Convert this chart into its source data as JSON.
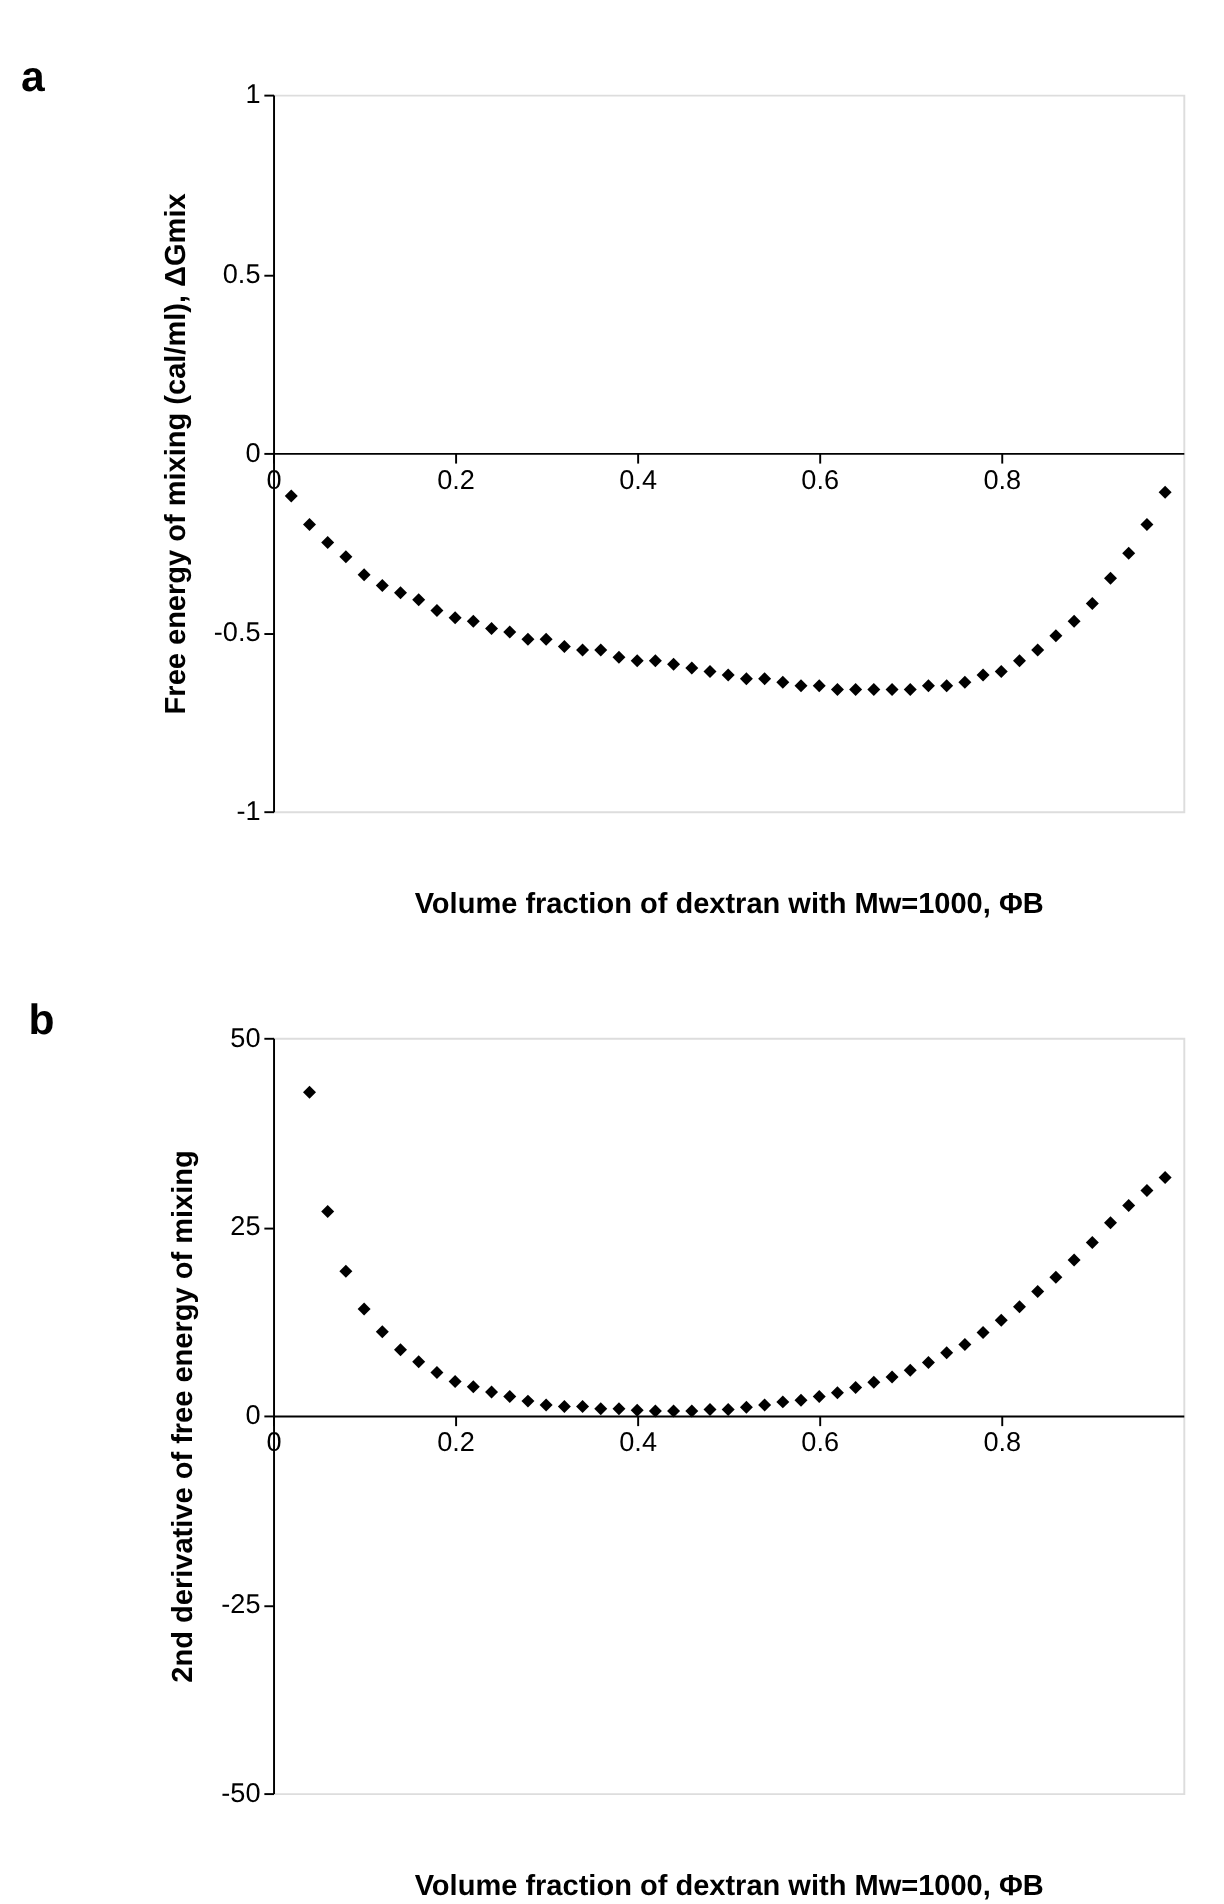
{
  "chart_data": [
    {
      "type": "scatter",
      "title": "a",
      "xlabel": "Volume fraction of dextran with Mw=1000, ΦB",
      "ylabel": "Free energy of mixing (cal/ml), ΔGmix",
      "marker": "diamond",
      "grid": false,
      "xlim": [
        0,
        1
      ],
      "xticks": [
        0,
        0.2,
        0.4,
        0.6,
        0.8
      ],
      "ylim": [
        -1,
        1
      ],
      "yticks": [
        -1,
        -0.5,
        0,
        0.5,
        1
      ],
      "series": [
        {
          "color": "#000000",
          "x": [
            0.02,
            0.04,
            0.06,
            0.08,
            0.1,
            0.12,
            0.14,
            0.16,
            0.18,
            0.2,
            0.22,
            0.24,
            0.26,
            0.28,
            0.3,
            0.32,
            0.34,
            0.36,
            0.38,
            0.4,
            0.42,
            0.44,
            0.46,
            0.48,
            0.5,
            0.52,
            0.54,
            0.56,
            0.58,
            0.6,
            0.62,
            0.64,
            0.66,
            0.68,
            0.7,
            0.72,
            0.74,
            0.76,
            0.78,
            0.8,
            0.82,
            0.84,
            0.86,
            0.88,
            0.9,
            0.92,
            0.94,
            0.96,
            0.98
          ],
          "values": [
            -0.12,
            -0.2,
            -0.25,
            -0.29,
            -0.34,
            -0.37,
            -0.39,
            -0.41,
            -0.44,
            -0.46,
            -0.47,
            -0.49,
            -0.5,
            -0.52,
            -0.52,
            -0.54,
            -0.55,
            -0.55,
            -0.57,
            -0.58,
            -0.58,
            -0.59,
            -0.6,
            -0.61,
            -0.62,
            -0.63,
            -0.63,
            -0.64,
            -0.65,
            -0.65,
            -0.66,
            -0.66,
            -0.66,
            -0.66,
            -0.66,
            -0.65,
            -0.65,
            -0.64,
            -0.62,
            -0.61,
            -0.58,
            -0.55,
            -0.51,
            -0.47,
            -0.42,
            -0.35,
            -0.28,
            -0.2,
            -0.11
          ]
        }
      ]
    },
    {
      "type": "scatter",
      "title": "b",
      "xlabel": "Volume fraction of dextran with Mw=1000, ΦB",
      "ylabel": "2nd derivative of free energy of mixing",
      "marker": "diamond",
      "grid": false,
      "xlim": [
        0,
        1
      ],
      "xticks": [
        0,
        0.2,
        0.4,
        0.6,
        0.8
      ],
      "ylim": [
        -50,
        50
      ],
      "yticks": [
        -50,
        -25,
        0,
        25,
        50
      ],
      "series": [
        {
          "color": "#000000",
          "x": [
            0.04,
            0.06,
            0.08,
            0.1,
            0.12,
            0.14,
            0.16,
            0.18,
            0.2,
            0.22,
            0.24,
            0.26,
            0.28,
            0.3,
            0.32,
            0.34,
            0.36,
            0.38,
            0.4,
            0.42,
            0.44,
            0.46,
            0.48,
            0.5,
            0.52,
            0.54,
            0.56,
            0.58,
            0.6,
            0.62,
            0.64,
            0.66,
            0.68,
            0.7,
            0.72,
            0.74,
            0.76,
            0.78,
            0.8,
            0.82,
            0.84,
            0.86,
            0.88,
            0.9,
            0.92,
            0.94,
            0.96,
            0.98
          ],
          "values": [
            42.8,
            27.0,
            19.1,
            14.1,
            11.1,
            8.7,
            7.1,
            5.7,
            4.5,
            3.8,
            3.1,
            2.5,
            1.9,
            1.4,
            1.2,
            1.2,
            0.9,
            0.9,
            0.7,
            0.6,
            0.6,
            0.6,
            0.8,
            0.8,
            1.1,
            1.4,
            1.8,
            2.0,
            2.5,
            3.0,
            3.7,
            4.4,
            5.1,
            6.0,
            7.0,
            8.3,
            9.4,
            11.0,
            12.6,
            14.4,
            16.4,
            18.3,
            20.6,
            22.9,
            25.5,
            27.8,
            29.8,
            31.5
          ]
        }
      ]
    }
  ]
}
